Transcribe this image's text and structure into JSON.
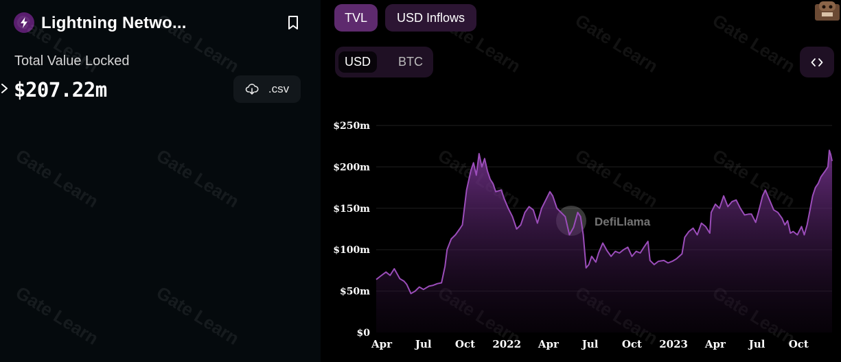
{
  "protocol": {
    "name": "Lightning Netwo...",
    "metric_label": "Total Value Locked",
    "metric_value": "$207.22m",
    "brand_color": "#5a1e6e"
  },
  "actions": {
    "csv_label": ".csv"
  },
  "tabs": [
    {
      "label": "TVL",
      "active": true
    },
    {
      "label": "USD Inflows",
      "active": false
    }
  ],
  "currency_toggle": [
    {
      "label": "USD",
      "active": true
    },
    {
      "label": "BTC",
      "active": false
    }
  ],
  "watermarks": {
    "text": "Gate Learn",
    "chart_brand": "DefiLlama"
  },
  "colors": {
    "accent": "#9b4dba",
    "tab_active": "#5e2a6e",
    "tab_inactive": "#2c1533"
  },
  "chart_data": {
    "type": "area",
    "title": "TVL",
    "ylim": [
      0,
      250
    ],
    "y_ticks": [
      "$0",
      "$50m",
      "$100m",
      "$150m",
      "$200m",
      "$250m"
    ],
    "x_ticks": [
      "Apr",
      "Jul",
      "Oct",
      "2022",
      "Apr",
      "Jul",
      "Oct",
      "2023",
      "Apr",
      "Jul",
      "Oct"
    ],
    "x_tick_months": [
      3,
      6,
      9,
      12,
      15,
      18,
      21,
      24,
      27,
      30,
      33
    ],
    "x_range_months": [
      3,
      35.8
    ],
    "x_bold_ticks": [
      3,
      7
    ],
    "series": [
      {
        "name": "TVL (USD, millions)",
        "points": [
          [
            3.0,
            64
          ],
          [
            3.3,
            68
          ],
          [
            3.7,
            73
          ],
          [
            4.0,
            69
          ],
          [
            4.3,
            77
          ],
          [
            4.7,
            65
          ],
          [
            5.0,
            62
          ],
          [
            5.2,
            58
          ],
          [
            5.5,
            47
          ],
          [
            5.8,
            50
          ],
          [
            6.1,
            55
          ],
          [
            6.4,
            52
          ],
          [
            6.8,
            56
          ],
          [
            7.1,
            57
          ],
          [
            7.4,
            59
          ],
          [
            7.7,
            60
          ],
          [
            7.95,
            80
          ],
          [
            8.1,
            100
          ],
          [
            8.4,
            113
          ],
          [
            8.7,
            118
          ],
          [
            9.0,
            125
          ],
          [
            9.2,
            130
          ],
          [
            9.5,
            172
          ],
          [
            9.8,
            195
          ],
          [
            10.0,
            205
          ],
          [
            10.2,
            190
          ],
          [
            10.4,
            216
          ],
          [
            10.6,
            200
          ],
          [
            10.8,
            210
          ],
          [
            11.0,
            195
          ],
          [
            11.2,
            185
          ],
          [
            11.4,
            180
          ],
          [
            11.6,
            170
          ],
          [
            12.0,
            172
          ],
          [
            12.2,
            162
          ],
          [
            12.5,
            150
          ],
          [
            12.8,
            140
          ],
          [
            13.1,
            125
          ],
          [
            13.4,
            130
          ],
          [
            13.7,
            145
          ],
          [
            14.0,
            152
          ],
          [
            14.3,
            148
          ],
          [
            14.6,
            132
          ],
          [
            14.9,
            150
          ],
          [
            15.2,
            160
          ],
          [
            15.5,
            170
          ],
          [
            15.7,
            165
          ],
          [
            16.0,
            150
          ],
          [
            16.3,
            145
          ],
          [
            16.6,
            140
          ],
          [
            16.9,
            118
          ],
          [
            17.2,
            127
          ],
          [
            17.5,
            145
          ],
          [
            17.7,
            140
          ],
          [
            17.9,
            118
          ],
          [
            18.1,
            78
          ],
          [
            18.3,
            82
          ],
          [
            18.5,
            92
          ],
          [
            18.8,
            85
          ],
          [
            19.0,
            96
          ],
          [
            19.3,
            108
          ],
          [
            19.6,
            99
          ],
          [
            19.9,
            92
          ],
          [
            20.2,
            98
          ],
          [
            20.5,
            96
          ],
          [
            20.8,
            100
          ],
          [
            21.1,
            103
          ],
          [
            21.4,
            92
          ],
          [
            21.7,
            98
          ],
          [
            22.0,
            96
          ],
          [
            22.3,
            104
          ],
          [
            22.55,
            110
          ],
          [
            22.7,
            87
          ],
          [
            23.0,
            82
          ],
          [
            23.3,
            86
          ],
          [
            23.7,
            87
          ],
          [
            24.0,
            84
          ],
          [
            24.3,
            86
          ],
          [
            24.6,
            89
          ],
          [
            25.0,
            95
          ],
          [
            25.2,
            115
          ],
          [
            25.5,
            122
          ],
          [
            25.8,
            126
          ],
          [
            26.1,
            118
          ],
          [
            26.4,
            132
          ],
          [
            26.7,
            128
          ],
          [
            27.0,
            120
          ],
          [
            27.1,
            145
          ],
          [
            27.4,
            155
          ],
          [
            27.7,
            150
          ],
          [
            28.0,
            165
          ],
          [
            28.3,
            152
          ],
          [
            28.6,
            158
          ],
          [
            28.9,
            160
          ],
          [
            29.2,
            150
          ],
          [
            29.5,
            142
          ],
          [
            29.8,
            143
          ],
          [
            30.0,
            143
          ],
          [
            30.3,
            133
          ],
          [
            30.5,
            145
          ],
          [
            30.8,
            165
          ],
          [
            31.0,
            172
          ],
          [
            31.3,
            160
          ],
          [
            31.6,
            148
          ],
          [
            31.9,
            145
          ],
          [
            32.2,
            138
          ],
          [
            32.4,
            130
          ],
          [
            32.6,
            135
          ],
          [
            32.8,
            120
          ],
          [
            33.0,
            122
          ],
          [
            33.3,
            118
          ],
          [
            33.6,
            128
          ],
          [
            33.8,
            118
          ],
          [
            34.0,
            130
          ],
          [
            34.2,
            147
          ],
          [
            34.4,
            165
          ],
          [
            34.6,
            175
          ],
          [
            34.8,
            180
          ],
          [
            35.0,
            188
          ],
          [
            35.3,
            195
          ],
          [
            35.5,
            200
          ],
          [
            35.6,
            220
          ],
          [
            35.7,
            215
          ],
          [
            35.8,
            207
          ]
        ]
      }
    ]
  }
}
